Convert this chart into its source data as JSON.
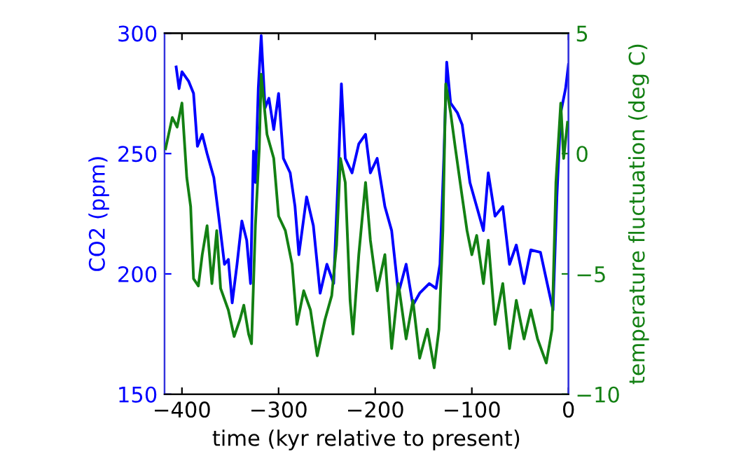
{
  "chart_data": {
    "type": "line",
    "xlabel": "time (kyr relative to present)",
    "ylabel": "CO2 (ppm)",
    "y2label": "temperature fluctuation (deg C)",
    "xlim": [
      -418,
      0
    ],
    "xticks": [
      {
        "value": -400,
        "label": "−400"
      },
      {
        "value": -300,
        "label": "−300"
      },
      {
        "value": -200,
        "label": "−200"
      },
      {
        "value": -100,
        "label": "−100"
      },
      0
    ],
    "ylim": [
      150,
      300
    ],
    "yticks": [
      150,
      200,
      250,
      300
    ],
    "y2lim": [
      -10,
      5
    ],
    "y2ticks": [
      {
        "value": -10,
        "label": "−10"
      },
      {
        "value": -5,
        "label": "−5"
      },
      0,
      5
    ],
    "grid": false,
    "legend": false,
    "series": [
      {
        "color": "#0000ff",
        "x": [
          -406,
          -403,
          -400,
          -393,
          -388,
          -384,
          -379,
          -374,
          -367,
          -362,
          -356,
          -352,
          -348,
          -343,
          -338,
          -333,
          -329,
          -326,
          -324,
          -321,
          -318,
          -314,
          -310,
          -305,
          -300,
          -295,
          -288,
          -283,
          -279,
          -271,
          -264,
          -257,
          -250,
          -243,
          -238,
          -235,
          -231,
          -224,
          -217,
          -210,
          -205,
          -198,
          -190,
          -183,
          -176,
          -168,
          -161,
          -154,
          -144,
          -137,
          -133,
          -129,
          -126,
          -122,
          -115,
          -110,
          -102,
          -95,
          -88,
          -83,
          -76,
          -68,
          -61,
          -54,
          -46,
          -39,
          -29,
          -22,
          -16,
          -12,
          -8,
          -3,
          0
        ],
        "values": [
          286,
          277,
          284,
          280,
          275,
          253,
          258,
          250,
          240,
          224,
          204,
          206,
          188,
          204,
          222,
          214,
          196,
          251,
          238,
          277,
          299,
          269,
          273,
          260,
          275,
          248,
          242,
          228,
          208,
          232,
          220,
          192,
          204,
          196,
          244,
          279,
          248,
          242,
          254,
          258,
          242,
          248,
          228,
          218,
          192,
          204,
          187,
          192,
          196,
          194,
          204,
          248,
          288,
          271,
          267,
          262,
          238,
          228,
          218,
          242,
          224,
          228,
          204,
          212,
          196,
          210,
          209,
          196,
          185,
          232,
          267,
          277,
          287
        ]
      },
      {
        "color": "#138013",
        "axis": "y2",
        "x": [
          -417,
          -410,
          -405,
          -400,
          -395,
          -391,
          -388,
          -383,
          -379,
          -374,
          -369,
          -364,
          -360,
          -352,
          -346,
          -340,
          -336,
          -331,
          -328,
          -324,
          -320,
          -318,
          -312,
          -305,
          -300,
          -293,
          -286,
          -281,
          -274,
          -267,
          -260,
          -252,
          -245,
          -240,
          -236,
          -231,
          -226,
          -223,
          -217,
          -210,
          -205,
          -198,
          -190,
          -183,
          -176,
          -168,
          -161,
          -154,
          -146,
          -139,
          -134,
          -130,
          -127,
          -122,
          -117,
          -110,
          -105,
          -100,
          -95,
          -88,
          -83,
          -76,
          -68,
          -61,
          -54,
          -46,
          -39,
          -32,
          -23,
          -17,
          -13,
          -8,
          -5,
          -1
        ],
        "values": [
          0.2,
          1.5,
          1.1,
          2.1,
          -1.0,
          -2.2,
          -5.2,
          -5.5,
          -4.2,
          -3.0,
          -5.4,
          -3.2,
          -5.6,
          -6.5,
          -7.6,
          -6.9,
          -6.3,
          -7.5,
          -7.9,
          -3.0,
          0.2,
          3.3,
          0.8,
          -0.2,
          -2.6,
          -3.2,
          -4.6,
          -7.1,
          -5.7,
          -6.5,
          -8.4,
          -6.9,
          -5.9,
          -3.8,
          -0.2,
          -1.2,
          -6.1,
          -7.5,
          -4.2,
          -1.2,
          -3.6,
          -5.7,
          -4.2,
          -8.1,
          -5.4,
          -7.7,
          -6.1,
          -8.5,
          -7.3,
          -8.9,
          -7.3,
          -3.2,
          2.9,
          1.7,
          0.2,
          -1.8,
          -3.2,
          -4.2,
          -3.4,
          -5.4,
          -3.6,
          -7.1,
          -5.4,
          -8.1,
          -6.1,
          -7.7,
          -6.5,
          -7.7,
          -8.7,
          -7.3,
          -1.2,
          2.1,
          -0.2,
          1.3
        ]
      }
    ]
  }
}
